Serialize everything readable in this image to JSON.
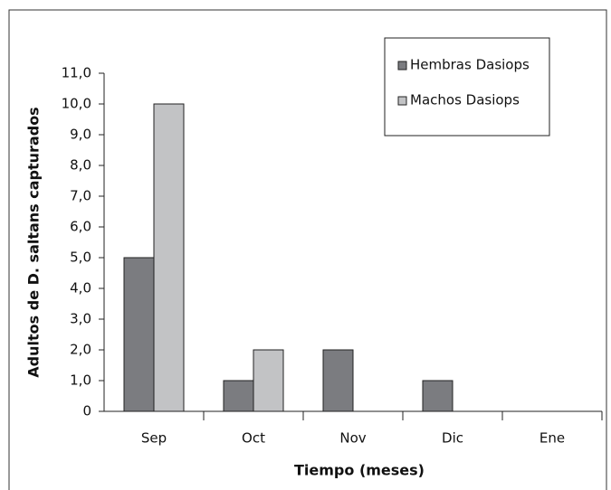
{
  "chart_data": {
    "type": "bar",
    "x_label": "Tiempo (meses)",
    "y_label": "Adultos de D. saltans capturados",
    "categories": [
      "Sep",
      "Oct",
      "Nov",
      "Dic",
      "Ene"
    ],
    "series": [
      {
        "name": "Hembras Dasiops",
        "color": "#7b7c80",
        "values": [
          5,
          1,
          2,
          1,
          0
        ]
      },
      {
        "name": "Machos Dasiops",
        "color": "#c2c3c5",
        "values": [
          10,
          2,
          0,
          0,
          0
        ]
      }
    ],
    "ylim": [
      0,
      11
    ],
    "yticks": [
      0,
      {
        "value": 1,
        "label": "1,0"
      },
      {
        "value": 2,
        "label": "2,0"
      },
      {
        "value": 3,
        "label": "3,0"
      },
      {
        "value": 4,
        "label": "4,0"
      },
      {
        "value": 5,
        "label": "5,0"
      },
      {
        "value": 6,
        "label": "6,0"
      },
      {
        "value": 7,
        "label": "7,0"
      },
      {
        "value": 8,
        "label": "8,0"
      },
      {
        "value": 9,
        "label": "9,0"
      },
      {
        "value": 10,
        "label": "10,0"
      },
      {
        "value": 11,
        "label": "11,0"
      }
    ],
    "legend": "top-right",
    "grid": false
  }
}
